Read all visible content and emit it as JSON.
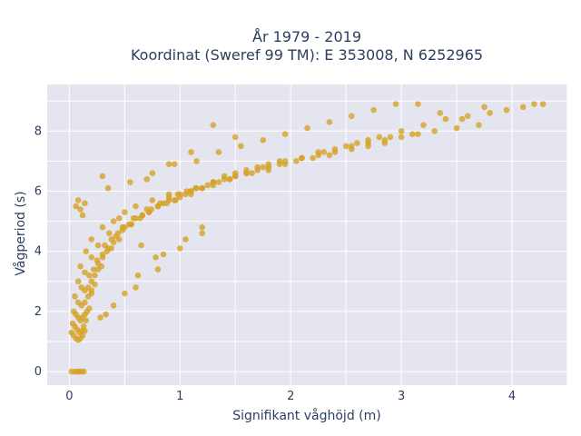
{
  "chart_data": {
    "type": "scatter",
    "title_lines": [
      "År 1979 - 2019",
      "Koordinat (Sweref 99 TM): E 353008, N 6252965"
    ],
    "xlabel": "Signifikant våghöjd (m)",
    "ylabel": "Vågperiod (s)",
    "xlim": [
      -0.2,
      4.5
    ],
    "ylim": [
      -0.45,
      9.55
    ],
    "xticks": [
      0,
      1,
      2,
      3,
      4
    ],
    "yticks": [
      0,
      2,
      4,
      6,
      8
    ],
    "grid": true,
    "marker_color": "#D4A325",
    "plot_bgcolor": "#E5E5F0",
    "series": [
      {
        "x": [
          0.02,
          0.05,
          0.07,
          0.09,
          0.11,
          0.13,
          0.02,
          0.04,
          0.06,
          0.08,
          0.1,
          0.12,
          0.14,
          0.03,
          0.05,
          0.07,
          0.09,
          0.11,
          0.13,
          0.15,
          0.04,
          0.06,
          0.08,
          0.1,
          0.12,
          0.14,
          0.16,
          0.18,
          0.05,
          0.08,
          0.11,
          0.14,
          0.17,
          0.2,
          0.23,
          0.08,
          0.11,
          0.14,
          0.17,
          0.2,
          0.23,
          0.26,
          0.29,
          0.1,
          0.14,
          0.18,
          0.22,
          0.26,
          0.3,
          0.34,
          0.38,
          0.15,
          0.2,
          0.25,
          0.3,
          0.35,
          0.4,
          0.45,
          0.2,
          0.26,
          0.32,
          0.38,
          0.44,
          0.5,
          0.56,
          0.3,
          0.36,
          0.42,
          0.48,
          0.54,
          0.6,
          0.66,
          0.72,
          0.4,
          0.48,
          0.56,
          0.64,
          0.72,
          0.8,
          0.88,
          0.96,
          0.5,
          0.58,
          0.66,
          0.74,
          0.82,
          0.9,
          0.98,
          1.06,
          1.14,
          0.6,
          0.7,
          0.8,
          0.9,
          1.0,
          1.1,
          1.2,
          1.3,
          0.75,
          0.85,
          0.95,
          1.05,
          1.15,
          1.25,
          1.35,
          1.45,
          0.9,
          1.0,
          1.1,
          1.2,
          1.3,
          1.4,
          1.5,
          1.6,
          1.7,
          1.1,
          1.2,
          1.3,
          1.4,
          1.5,
          1.6,
          1.7,
          1.8,
          1.9,
          1.3,
          1.45,
          1.6,
          1.75,
          1.9,
          2.05,
          2.2,
          2.35,
          1.5,
          1.65,
          1.8,
          1.95,
          2.1,
          2.25,
          2.4,
          2.55,
          2.7,
          2.85,
          1.8,
          1.95,
          2.1,
          2.25,
          2.4,
          2.55,
          2.7,
          2.85,
          3.0,
          3.15,
          2.1,
          2.3,
          2.5,
          2.7,
          2.9,
          3.1,
          3.3,
          3.5,
          3.7,
          2.6,
          2.8,
          3.0,
          3.2,
          3.4,
          3.6,
          3.8,
          3.95,
          4.1,
          4.2,
          4.28,
          0.06,
          0.08,
          0.1,
          0.12,
          0.14,
          0.28,
          0.33,
          0.5,
          0.62,
          0.85,
          1.05,
          1.2,
          0.7,
          0.9,
          1.1,
          1.3,
          1.5,
          0.35,
          0.55,
          0.75,
          0.95,
          1.15,
          1.35,
          1.55,
          1.75,
          1.95,
          2.15,
          2.35,
          2.55,
          2.75,
          2.95,
          3.15,
          3.35,
          3.55,
          3.75,
          1.2,
          1.0,
          0.8,
          0.6,
          0.4,
          0.2,
          0.3,
          0.45,
          0.65,
          0.78
        ],
        "y": [
          0,
          0,
          0,
          0,
          0,
          0,
          1.3,
          1.2,
          1.1,
          1.05,
          1.1,
          1.2,
          1.35,
          1.6,
          1.5,
          1.4,
          1.3,
          1.35,
          1.5,
          1.7,
          2.0,
          1.9,
          1.8,
          1.7,
          1.8,
          1.9,
          2.0,
          2.1,
          2.5,
          2.3,
          2.2,
          2.3,
          2.5,
          2.7,
          2.9,
          3.0,
          2.8,
          2.7,
          2.8,
          3.0,
          3.2,
          3.4,
          3.5,
          3.5,
          3.3,
          3.2,
          3.4,
          3.6,
          3.8,
          4.0,
          4.1,
          4.0,
          3.8,
          3.7,
          3.9,
          4.1,
          4.3,
          4.4,
          4.4,
          4.2,
          4.2,
          4.4,
          4.6,
          4.8,
          4.9,
          4.8,
          4.6,
          4.5,
          4.7,
          4.9,
          5.1,
          5.2,
          5.3,
          5.0,
          4.8,
          4.9,
          5.1,
          5.3,
          5.5,
          5.6,
          5.7,
          5.3,
          5.1,
          5.2,
          5.4,
          5.6,
          5.8,
          5.9,
          6.0,
          6.1,
          5.5,
          5.4,
          5.5,
          5.7,
          5.9,
          6.0,
          6.1,
          6.2,
          5.7,
          5.6,
          5.7,
          5.9,
          6.1,
          6.2,
          6.3,
          6.4,
          5.9,
          5.8,
          5.9,
          6.1,
          6.3,
          6.4,
          6.5,
          6.6,
          6.7,
          6.0,
          6.1,
          6.3,
          6.5,
          6.6,
          6.7,
          6.8,
          6.9,
          7.0,
          6.3,
          6.4,
          6.6,
          6.8,
          6.9,
          7.0,
          7.1,
          7.2,
          6.5,
          6.6,
          6.8,
          7.0,
          7.1,
          7.2,
          7.3,
          7.4,
          7.5,
          7.6,
          6.7,
          6.9,
          7.1,
          7.3,
          7.4,
          7.5,
          7.6,
          7.7,
          7.8,
          7.9,
          7.1,
          7.3,
          7.5,
          7.7,
          7.8,
          7.9,
          8.0,
          8.1,
          8.2,
          7.6,
          7.8,
          8.0,
          8.2,
          8.4,
          8.5,
          8.6,
          8.7,
          8.8,
          8.9,
          8.9,
          5.5,
          5.7,
          5.4,
          5.2,
          5.6,
          1.8,
          1.9,
          2.6,
          3.2,
          3.9,
          4.4,
          4.8,
          6.4,
          6.9,
          7.3,
          8.2,
          7.8,
          6.1,
          6.3,
          6.6,
          6.9,
          7.0,
          7.3,
          7.5,
          7.7,
          7.9,
          8.1,
          8.3,
          8.5,
          8.7,
          8.9,
          8.9,
          8.6,
          8.4,
          8.8,
          4.6,
          4.1,
          3.4,
          2.8,
          2.2,
          2.6,
          6.5,
          5.1,
          4.2,
          3.8
        ]
      }
    ]
  }
}
